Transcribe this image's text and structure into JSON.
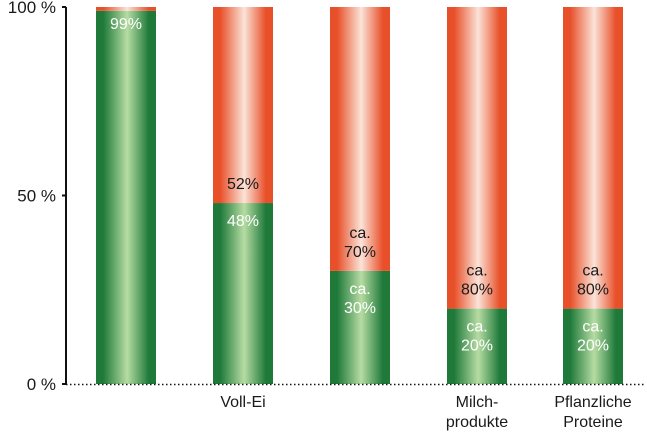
{
  "chart_data": {
    "type": "bar",
    "stacked": true,
    "orientation": "vertical",
    "ylim": [
      0,
      100
    ],
    "yticks": [
      "0 %",
      "50 %",
      "100 %"
    ],
    "ytick_values": [
      0,
      50,
      100
    ],
    "grid": false,
    "legend": "none",
    "categories": [
      [
        ""
      ],
      [
        "Voll-Ei"
      ],
      [
        ""
      ],
      [
        "Milch-",
        "produkte"
      ],
      [
        "Pflanzliche",
        "Proteine"
      ]
    ],
    "series": [
      {
        "values": [
          99,
          48,
          30,
          20,
          20
        ],
        "labels": [
          [
            "99%"
          ],
          [
            "48%"
          ],
          [
            "ca.",
            "30%"
          ],
          [
            "ca.",
            "20%"
          ],
          [
            "ca.",
            "20%"
          ]
        ],
        "color": "#1f7a3a",
        "color_light": "#b6dca3",
        "label_color": "#ffffff"
      },
      {
        "values": [
          1,
          52,
          70,
          80,
          80
        ],
        "labels": [
          [],
          [
            "52%"
          ],
          [
            "ca.",
            "70%"
          ],
          [
            "ca.",
            "80%"
          ],
          [
            "ca.",
            "80%"
          ]
        ],
        "color": "#e8502a",
        "color_light": "#fbe3d8",
        "label_color": "#1a1a1a"
      }
    ]
  }
}
